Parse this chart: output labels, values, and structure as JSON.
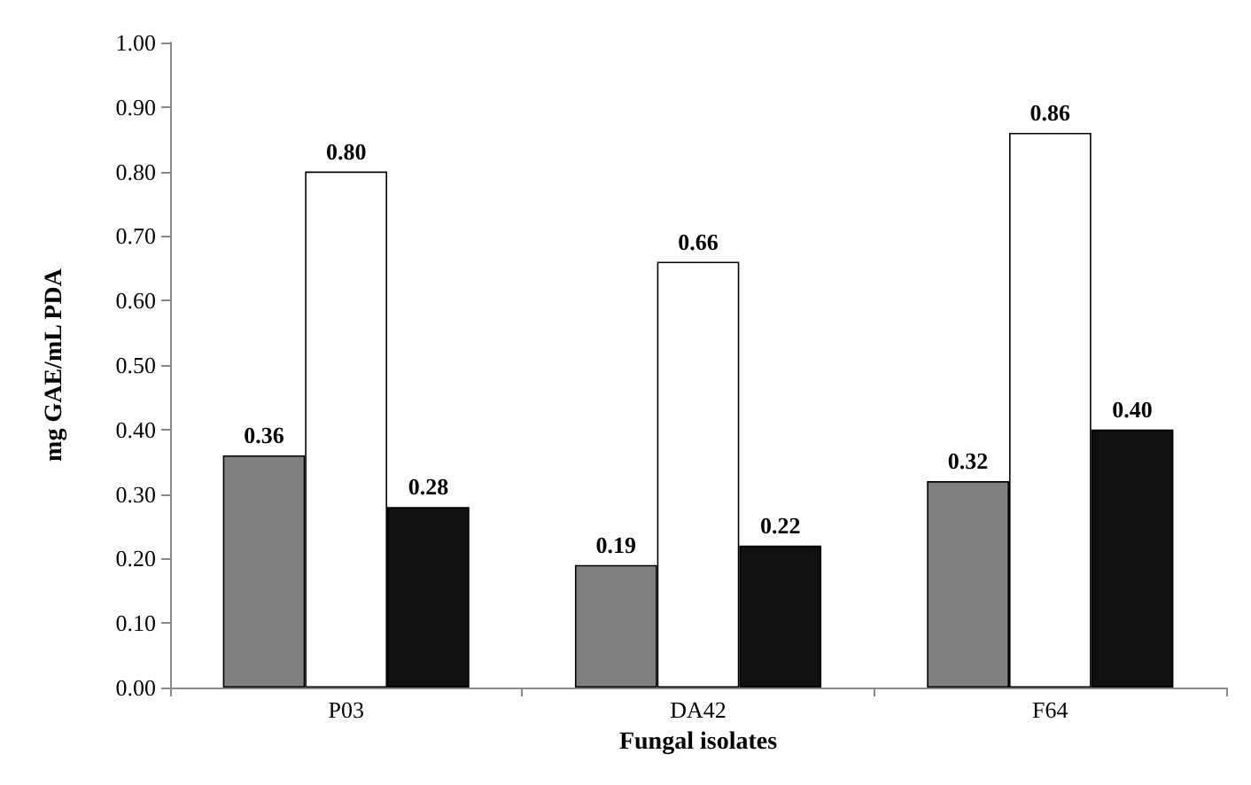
{
  "chart_data": {
    "type": "bar",
    "xlabel": "Fungal isolates",
    "ylabel": "mg GAE/mL PDA",
    "categories": [
      "P03",
      "DA42",
      "F64"
    ],
    "series": [
      {
        "color": "#808080",
        "values": [
          0.36,
          0.19,
          0.32
        ],
        "value_labels": [
          "0.36",
          "0.19",
          "0.32"
        ]
      },
      {
        "color": "#ffffff",
        "values": [
          0.8,
          0.66,
          0.86
        ],
        "value_labels": [
          "0.80",
          "0.66",
          "0.86"
        ]
      },
      {
        "color": "#111111",
        "values": [
          0.28,
          0.22,
          0.4
        ],
        "value_labels": [
          "0.28",
          "0.22",
          "0.40"
        ]
      }
    ],
    "ylim": [
      0,
      1
    ],
    "yticks": [
      {
        "value": 0,
        "label": "0.00"
      },
      {
        "value": 0.1,
        "label": "0.10"
      },
      {
        "value": 0.2,
        "label": "0.20"
      },
      {
        "value": 0.3,
        "label": "0.30"
      },
      {
        "value": 0.4,
        "label": "0.40"
      },
      {
        "value": 0.5,
        "label": "0.50"
      },
      {
        "value": 0.6,
        "label": "0.60"
      },
      {
        "value": 0.7,
        "label": "0.70"
      },
      {
        "value": 0.8,
        "label": "0.80"
      },
      {
        "value": 0.9,
        "label": "0.90"
      },
      {
        "value": 1,
        "label": "1.00"
      }
    ],
    "grid": false
  }
}
